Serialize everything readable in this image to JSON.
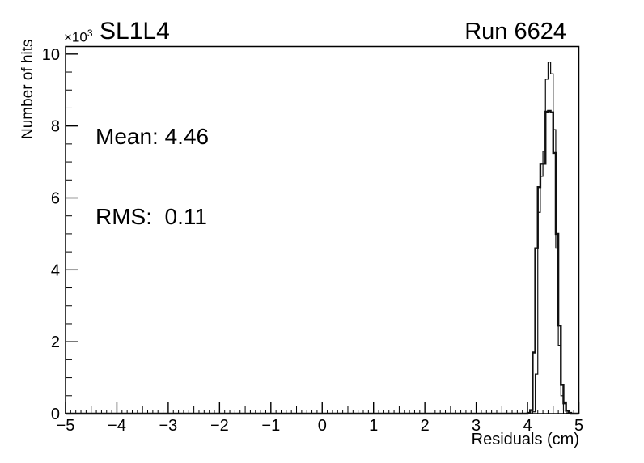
{
  "header": {
    "exponent": {
      "mantissa": "×10",
      "power": "3"
    },
    "title": "SL1L4",
    "run_label": "Run 6624"
  },
  "stats": {
    "mean_label": "Mean: 4.46",
    "rms_label": "RMS:  0.11"
  },
  "chart_data": {
    "type": "bar",
    "subtype": "step-outline-histogram",
    "title": "SL1L4",
    "annotation": "Run 6624",
    "xlabel": "Residuals (cm)",
    "ylabel": "Number of hits",
    "y_exponent": "×10³",
    "mean": 4.46,
    "rms": 0.11,
    "xlim": [
      -5,
      5
    ],
    "ylim": [
      0,
      10.21
    ],
    "grid": false,
    "x_tick_labels": [
      "−5",
      "−4",
      "−3",
      "−2",
      "−1",
      "0",
      "1",
      "2",
      "3",
      "4",
      "5"
    ],
    "y_tick_labels": [
      "0",
      "2",
      "4",
      "6",
      "8",
      "10"
    ],
    "x_major_step": 1,
    "x_medium_step": 0.5,
    "x_minor_step": 0.1,
    "y_major_step": 2,
    "y_minor_step": 0.5,
    "line_color": "#111111",
    "series": [
      {
        "name": "residuals-outer",
        "bin_width": 0.05,
        "x_start": 4.0,
        "line_width": 2.4,
        "values": [
          0.02,
          0.1,
          1.7,
          4.6,
          6.3,
          6.95,
          6.95,
          8.4,
          8.42,
          8.38,
          7.25,
          5.0,
          2.45,
          0.8,
          0.29,
          0.08,
          0.02
        ]
      },
      {
        "name": "residuals-inner",
        "bin_width": 0.05,
        "x_start": 4.1,
        "line_width": 1.2,
        "values": [
          0.05,
          1.1,
          5.6,
          6.6,
          7.3,
          9.3,
          9.78,
          9.45,
          7.9,
          4.6,
          1.9,
          0.5,
          0.1,
          0.02
        ]
      }
    ]
  }
}
